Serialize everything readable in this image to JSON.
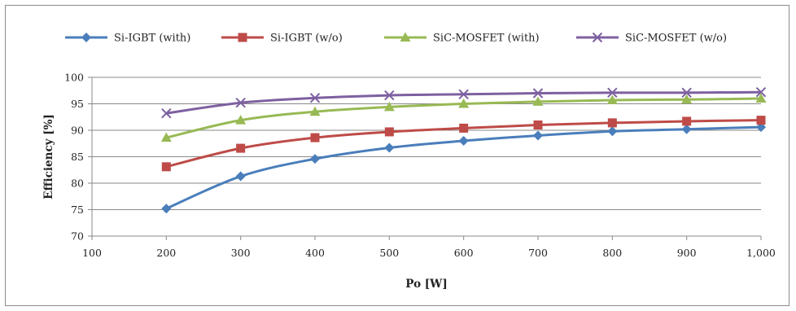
{
  "chart_data": {
    "type": "line",
    "title": "",
    "xlabel": "Po [W]",
    "ylabel": "Efficiency [%]",
    "x_ticks": [
      "100",
      "200",
      "300",
      "400",
      "500",
      "600",
      "700",
      "800",
      "900",
      "1,000"
    ],
    "y_ticks": [
      "70",
      "75",
      "80",
      "85",
      "90",
      "95",
      "100"
    ],
    "xlim": [
      100,
      1000
    ],
    "ylim": [
      70,
      100
    ],
    "grid": "horizontal",
    "legend_position": "top",
    "x": [
      200,
      300,
      400,
      500,
      600,
      700,
      800,
      900,
      1000
    ],
    "series": [
      {
        "name": "Si-IGBT (with)",
        "color": "#4a7ebb",
        "marker": "diamond",
        "values": [
          75.2,
          81.3,
          84.6,
          86.7,
          88.0,
          89.0,
          89.8,
          90.2,
          90.6
        ]
      },
      {
        "name": "Si-IGBT (w/o)",
        "color": "#be4b48",
        "marker": "square",
        "values": [
          83.1,
          86.6,
          88.6,
          89.7,
          90.4,
          91.0,
          91.4,
          91.7,
          91.9
        ]
      },
      {
        "name": "SiC-MOSFET (with)",
        "color": "#98b954",
        "marker": "triangle",
        "values": [
          88.6,
          91.9,
          93.5,
          94.4,
          95.0,
          95.4,
          95.7,
          95.8,
          96.0
        ]
      },
      {
        "name": "SiC-MOSFET (w/o)",
        "color": "#7d60a0",
        "marker": "x",
        "values": [
          93.2,
          95.2,
          96.1,
          96.6,
          96.8,
          97.0,
          97.1,
          97.1,
          97.2
        ]
      }
    ]
  }
}
